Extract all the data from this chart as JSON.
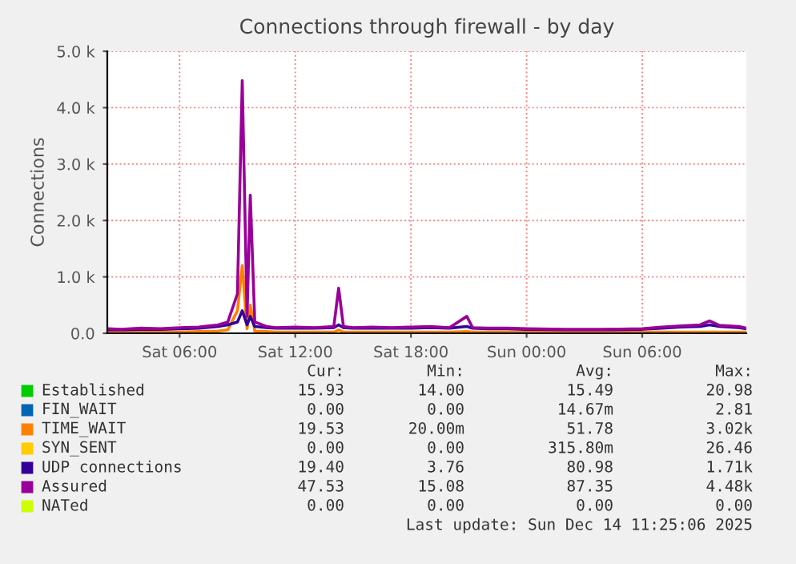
{
  "chart_data": {
    "type": "line",
    "title": "Connections through firewall - by day",
    "ylabel": "Connections",
    "x": [
      "2025-12-13T02:15",
      "2025-12-13T03:00",
      "2025-12-13T04:00",
      "2025-12-13T05:00",
      "2025-12-13T06:00",
      "2025-12-13T07:00",
      "2025-12-13T08:00",
      "2025-12-13T08:30",
      "2025-12-13T09:00",
      "2025-12-13T09:15",
      "2025-12-13T09:30",
      "2025-12-13T09:40",
      "2025-12-13T09:54",
      "2025-12-13T10:30",
      "2025-12-13T11:00",
      "2025-12-13T12:00",
      "2025-12-13T13:00",
      "2025-12-13T14:00",
      "2025-12-13T14:15",
      "2025-12-13T14:30",
      "2025-12-13T15:00",
      "2025-12-13T16:00",
      "2025-12-13T17:00",
      "2025-12-13T18:00",
      "2025-12-13T19:00",
      "2025-12-13T20:00",
      "2025-12-13T20:54",
      "2025-12-13T21:12",
      "2025-12-13T22:00",
      "2025-12-13T23:00",
      "2025-12-14T00:00",
      "2025-12-14T02:00",
      "2025-12-14T04:00",
      "2025-12-14T06:00",
      "2025-12-14T07:00",
      "2025-12-14T08:00",
      "2025-12-14T09:00",
      "2025-12-14T09:30",
      "2025-12-14T10:00",
      "2025-12-14T11:00",
      "2025-12-14T11:24"
    ],
    "xlim": [
      "2025-12-13T02:15",
      "2025-12-14T11:24"
    ],
    "xticks": [
      {
        "value": "2025-12-13T06:00",
        "label": "Sat 06:00"
      },
      {
        "value": "2025-12-13T12:00",
        "label": "Sat 12:00"
      },
      {
        "value": "2025-12-13T18:00",
        "label": "Sat 18:00"
      },
      {
        "value": "2025-12-14T00:00",
        "label": "Sun 00:00"
      },
      {
        "value": "2025-12-14T06:00",
        "label": "Sun 06:00"
      }
    ],
    "ylim": [
      0,
      5000
    ],
    "yticks": [
      {
        "value": 0,
        "label": "0.0"
      },
      {
        "value": 1000,
        "label": "1.0 k"
      },
      {
        "value": 2000,
        "label": "2.0 k"
      },
      {
        "value": 3000,
        "label": "3.0 k"
      },
      {
        "value": 4000,
        "label": "4.0 k"
      },
      {
        "value": 5000,
        "label": "5.0 k"
      }
    ],
    "grid": true,
    "legend": "bottom",
    "series": [
      {
        "name": "Established",
        "color": "#00cc00",
        "values": [
          null,
          null,
          null,
          null,
          null,
          null,
          null,
          null,
          null,
          null,
          null,
          null,
          null,
          null,
          null,
          null,
          null,
          null,
          null,
          null,
          null,
          null,
          null,
          null,
          null,
          null,
          null,
          null,
          null,
          null,
          null,
          null,
          null,
          null,
          null,
          null,
          null,
          null,
          null,
          null,
          null
        ]
      },
      {
        "name": "FIN_WAIT",
        "color": "#0066b3",
        "values": [
          null,
          null,
          null,
          null,
          null,
          null,
          null,
          null,
          null,
          null,
          null,
          null,
          null,
          null,
          null,
          null,
          null,
          null,
          null,
          null,
          null,
          null,
          null,
          null,
          null,
          null,
          null,
          null,
          null,
          null,
          null,
          null,
          null,
          null,
          null,
          null,
          null,
          null,
          null,
          null,
          null
        ]
      },
      {
        "name": "TIME_WAIT",
        "color": "#ff8000",
        "values": [
          20,
          20,
          20,
          20,
          20,
          30,
          40,
          60,
          400,
          1200,
          80,
          500,
          40,
          30,
          20,
          20,
          20,
          20,
          60,
          20,
          20,
          20,
          20,
          20,
          20,
          20,
          30,
          20,
          20,
          20,
          20,
          20,
          20,
          20,
          20,
          20,
          20,
          20,
          20,
          20,
          20
        ]
      },
      {
        "name": "SYN_SENT",
        "color": "#ffcc00",
        "values": [
          null,
          null,
          null,
          null,
          null,
          null,
          null,
          null,
          null,
          null,
          null,
          null,
          null,
          null,
          null,
          null,
          null,
          null,
          null,
          null,
          null,
          null,
          null,
          null,
          null,
          null,
          null,
          null,
          null,
          null,
          null,
          null,
          null,
          null,
          null,
          null,
          null,
          null,
          null,
          null,
          null
        ]
      },
      {
        "name": "UDP connections",
        "color": "#330099",
        "values": [
          60,
          60,
          70,
          70,
          80,
          90,
          120,
          150,
          200,
          400,
          150,
          300,
          120,
          100,
          90,
          90,
          90,
          100,
          150,
          100,
          90,
          90,
          90,
          90,
          100,
          90,
          120,
          90,
          80,
          80,
          70,
          60,
          60,
          70,
          90,
          110,
          120,
          150,
          120,
          100,
          80
        ]
      },
      {
        "name": "Assured",
        "color": "#990099",
        "values": [
          80,
          70,
          90,
          80,
          100,
          110,
          150,
          200,
          700,
          4480,
          300,
          2450,
          200,
          120,
          100,
          110,
          100,
          120,
          800,
          120,
          100,
          110,
          100,
          110,
          120,
          100,
          300,
          100,
          90,
          90,
          80,
          70,
          70,
          80,
          110,
          130,
          150,
          220,
          140,
          120,
          90
        ]
      },
      {
        "name": "NATed",
        "color": "#ccff00",
        "values": [
          null,
          null,
          null,
          null,
          null,
          null,
          null,
          null,
          null,
          null,
          null,
          null,
          null,
          null,
          null,
          null,
          null,
          null,
          null,
          null,
          null,
          null,
          null,
          null,
          null,
          null,
          null,
          null,
          null,
          null,
          null,
          null,
          null,
          null,
          null,
          null,
          null,
          null,
          null,
          null,
          null
        ]
      }
    ],
    "annotations": [
      "Cur:",
      "Min:",
      "Avg:",
      "Max:",
      "15.93",
      "14.00",
      "15.49",
      "20.98",
      "0.00",
      "0.00",
      "14.67m",
      "2.81",
      "19.53",
      "20.00m",
      "51.78",
      "3.02k",
      "0.00",
      "0.00",
      "315.80m",
      "26.46",
      "19.40",
      "3.76",
      "80.98",
      "1.71k",
      "47.53",
      "15.08",
      "87.35",
      "4.48k",
      "0.00",
      "0.00",
      "0.00",
      "0.00",
      "Last update: Sun Dec 14 11:25:06 2025"
    ]
  }
}
